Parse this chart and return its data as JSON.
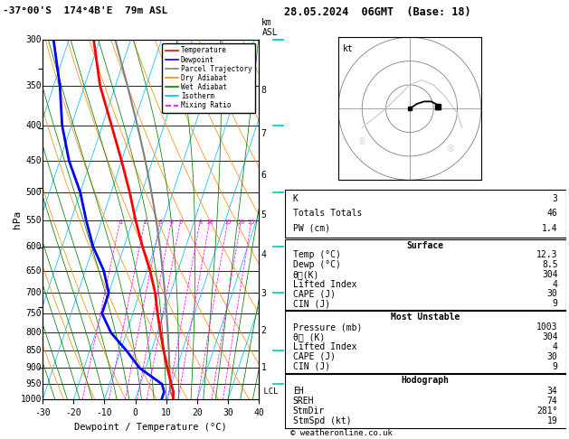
{
  "title_left": "-37°00'S  174°4B'E  79m ASL",
  "title_right": "28.05.2024  06GMT  (Base: 18)",
  "xlabel": "Dewpoint / Temperature (°C)",
  "pressure_levels": [
    300,
    350,
    400,
    450,
    500,
    550,
    600,
    650,
    700,
    750,
    800,
    850,
    900,
    950,
    1000
  ],
  "mixing_ratio_values": [
    1,
    2,
    3,
    4,
    5,
    8,
    10,
    15,
    20,
    25
  ],
  "km_ticks": [
    1,
    2,
    3,
    4,
    5,
    6,
    7,
    8
  ],
  "x_min": -30,
  "x_max": 40,
  "p_min": 300,
  "p_max": 1000,
  "skew_factor": 0.55,
  "temp_pressures": [
    1003,
    975,
    950,
    900,
    850,
    800,
    750,
    700,
    650,
    600,
    550,
    500,
    450,
    400,
    350,
    300
  ],
  "temp_values": [
    12.3,
    11.5,
    10,
    7,
    4,
    1,
    -2,
    -5,
    -9,
    -14,
    -19,
    -24,
    -30,
    -37,
    -45,
    -52
  ],
  "dewp_pressures": [
    1003,
    975,
    950,
    900,
    850,
    800,
    750,
    700,
    650,
    600,
    550,
    500,
    450,
    400,
    350,
    300
  ],
  "dewp_values": [
    8.5,
    8.5,
    7,
    -2,
    -8,
    -15,
    -20,
    -20,
    -24,
    -30,
    -35,
    -40,
    -47,
    -53,
    -58,
    -65
  ],
  "lcl_pressure": 975,
  "legend_items": [
    {
      "label": "Temperature",
      "color": "#ff0000",
      "style": "-"
    },
    {
      "label": "Dewpoint",
      "color": "#0000ff",
      "style": "-"
    },
    {
      "label": "Parcel Trajectory",
      "color": "#808080",
      "style": "-"
    },
    {
      "label": "Dry Adiabat",
      "color": "#ff8c00",
      "style": "-"
    },
    {
      "label": "Wet Adiabat",
      "color": "#008000",
      "style": "-"
    },
    {
      "label": "Isotherm",
      "color": "#00bfff",
      "style": "-"
    },
    {
      "label": "Mixing Ratio",
      "color": "#ff00ff",
      "style": "--"
    }
  ],
  "stats_k": 3,
  "stats_tt": 46,
  "stats_pw": 1.4,
  "surf_temp": 12.3,
  "surf_dewp": 8.5,
  "surf_thetae": 304,
  "surf_li": 4,
  "surf_cape": 30,
  "surf_cin": 9,
  "mu_pres": 1003,
  "mu_thetae": 304,
  "mu_li": 4,
  "mu_cape": 30,
  "mu_cin": 9,
  "hodo_eh": 34,
  "hodo_sreh": 74,
  "hodo_stmdir": "281°",
  "hodo_stmspd": 19,
  "bg_color": "#ffffff",
  "isotherm_color": "#00bfff",
  "dry_adiabat_color": "#ff8c00",
  "wet_adiabat_color": "#008000",
  "mixing_ratio_color": "#ff00ff",
  "temp_color": "#ff0000",
  "dewp_color": "#0000ff",
  "parcel_color": "#808080",
  "wind_barb_color": "#00cccc"
}
